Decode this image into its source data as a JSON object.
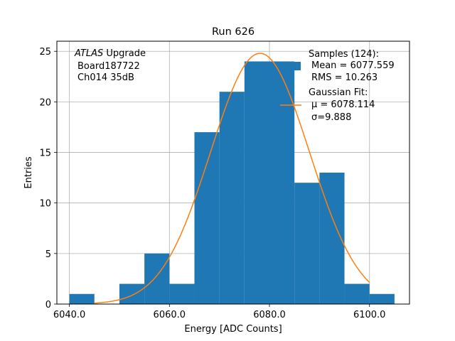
{
  "chart_data": {
    "type": "bar",
    "title": "Run 626",
    "xlabel": "Energy [ADC Counts]",
    "ylabel": "Entries",
    "xlim": [
      6037.5,
      6108.0
    ],
    "ylim": [
      0,
      26
    ],
    "grid": true,
    "x_ticks": [
      6040.0,
      6060.0,
      6080.0,
      6100.0
    ],
    "x_tick_labels": [
      "6040.0",
      "6060.0",
      "6080.0",
      "6100.0"
    ],
    "y_ticks": [
      0,
      5,
      10,
      15,
      20,
      25
    ],
    "y_tick_labels": [
      "0",
      "5",
      "10",
      "15",
      "20",
      "25"
    ],
    "bar_color": "#1f77b4",
    "fit_color": "#ff7f0e",
    "bins": [
      {
        "x0": 6040,
        "x1": 6045,
        "count": 1
      },
      {
        "x0": 6045,
        "x1": 6050,
        "count": 0
      },
      {
        "x0": 6050,
        "x1": 6055,
        "count": 2
      },
      {
        "x0": 6055,
        "x1": 6060,
        "count": 5
      },
      {
        "x0": 6060,
        "x1": 6065,
        "count": 2
      },
      {
        "x0": 6065,
        "x1": 6070,
        "count": 17
      },
      {
        "x0": 6070,
        "x1": 6075,
        "count": 21
      },
      {
        "x0": 6075,
        "x1": 6080,
        "count": 24
      },
      {
        "x0": 6080,
        "x1": 6085,
        "count": 24
      },
      {
        "x0": 6085,
        "x1": 6090,
        "count": 12
      },
      {
        "x0": 6090,
        "x1": 6095,
        "count": 13
      },
      {
        "x0": 6095,
        "x1": 6100,
        "count": 2
      },
      {
        "x0": 6100,
        "x1": 6105,
        "count": 1
      }
    ],
    "gaussian_fit": {
      "mu": 6078.114,
      "sigma": 9.888,
      "amplitude": 24.8,
      "x_range": [
        6045,
        6100
      ]
    },
    "annotation": {
      "line1_italic": "ATLAS",
      "line1_rest": " Upgrade",
      "line2": "Board187722",
      "line3": "Ch014 35dB"
    },
    "legend": {
      "position": "top-right",
      "samples_label": "Samples (124):",
      "mean_label": "Mean = 6077.559",
      "rms_label": "RMS = 10.263",
      "fit_label": "Gaussian Fit:",
      "mu_label": "μ = 6078.114",
      "sigma_label": "σ=9.888"
    }
  }
}
